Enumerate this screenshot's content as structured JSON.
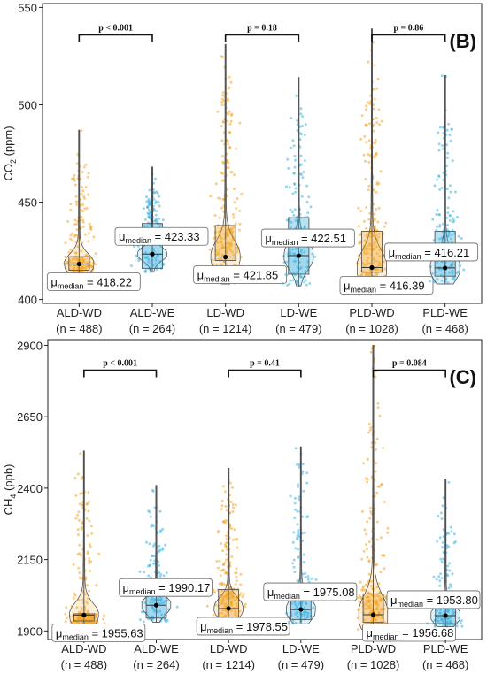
{
  "colors": {
    "wd": "#F5A623",
    "wd_box": "#F2A01E",
    "we": "#3DB5E6",
    "we_box": "#35A9DA",
    "axis": "#222222",
    "whisker": "#555555"
  },
  "chart_data": [
    {
      "type": "box-violin",
      "panel_label": "(B)",
      "ylabel_main": "CO",
      "ylabel_sub": "2",
      "ylabel_unit": " (ppm)",
      "ylim": [
        398,
        552
      ],
      "yticks": [
        400,
        450,
        500,
        550
      ],
      "grid": false,
      "categories": [
        {
          "name": "ALD-WD",
          "n": "(n = 488)",
          "group": "wd"
        },
        {
          "name": "ALD-WE",
          "n": "(n = 264)",
          "group": "we"
        },
        {
          "name": "LD-WD",
          "n": "(n = 1214)",
          "group": "wd"
        },
        {
          "name": "LD-WE",
          "n": "(n = 479)",
          "group": "we"
        },
        {
          "name": "PLD-WD",
          "n": "(n = 1028)",
          "group": "wd"
        },
        {
          "name": "PLD-WE",
          "n": "(n = 468)",
          "group": "we"
        }
      ],
      "boxes": [
        {
          "min": 410,
          "q1": 415,
          "median": 418.22,
          "q3": 422,
          "max": 487,
          "label": "= 418.22"
        },
        {
          "min": 414,
          "q1": 416,
          "median": 423.33,
          "q3": 439,
          "max": 468,
          "label": "= 423.33"
        },
        {
          "min": 408,
          "q1": 420,
          "median": 421.85,
          "q3": 438,
          "max": 531,
          "label": "= 421.85"
        },
        {
          "min": 407,
          "q1": 413,
          "median": 422.51,
          "q3": 442,
          "max": 514,
          "label": "= 422.51"
        },
        {
          "min": 406,
          "q1": 414,
          "median": 416.39,
          "q3": 435,
          "max": 539,
          "label": "= 416.39"
        },
        {
          "min": 408,
          "q1": 412,
          "median": 416.21,
          "q3": 435,
          "max": 515,
          "label": "= 416.21"
        }
      ],
      "comparisons": [
        {
          "pair": [
            0,
            1
          ],
          "p": "p < 0.001",
          "y": 545
        },
        {
          "pair": [
            2,
            3
          ],
          "p": "p = 0.18",
          "y": 545
        },
        {
          "pair": [
            4,
            5
          ],
          "p": "p = 0.86",
          "y": 545
        }
      ]
    },
    {
      "type": "box-violin",
      "panel_label": "(C)",
      "ylabel_main": "CH",
      "ylabel_sub": "4",
      "ylabel_unit": " (ppb)",
      "ylim": [
        1870,
        2920
      ],
      "yticks": [
        1900,
        2150,
        2400,
        2650,
        2900
      ],
      "grid": false,
      "categories": [
        {
          "name": "ALD-WD",
          "n": "(n = 488)",
          "group": "wd"
        },
        {
          "name": "ALD-WE",
          "n": "(n = 264)",
          "group": "we"
        },
        {
          "name": "LD-WD",
          "n": "(n = 1214)",
          "group": "wd"
        },
        {
          "name": "LD-WE",
          "n": "(n = 479)",
          "group": "we"
        },
        {
          "name": "PLD-WD",
          "n": "(n = 1028)",
          "group": "wd"
        },
        {
          "name": "PLD-WE",
          "n": "(n = 468)",
          "group": "we"
        }
      ],
      "boxes": [
        {
          "min": 1920,
          "q1": 1935,
          "median": 1955.63,
          "q3": 1960,
          "max": 2530,
          "label": "= 1955.63"
        },
        {
          "min": 1930,
          "q1": 1945,
          "median": 1990.17,
          "q3": 2060,
          "max": 2410,
          "label": "= 1990.17"
        },
        {
          "min": 1915,
          "q1": 1945,
          "median": 1978.55,
          "q3": 2045,
          "max": 2470,
          "label": "= 1978.55"
        },
        {
          "min": 1925,
          "q1": 1940,
          "median": 1975.08,
          "q3": 2040,
          "max": 2545,
          "label": "= 1975.08"
        },
        {
          "min": 1905,
          "q1": 1930,
          "median": 1956.68,
          "q3": 2030,
          "max": 2900,
          "label": "= 1956.68"
        },
        {
          "min": 1915,
          "q1": 1925,
          "median": 1953.8,
          "q3": 2000,
          "max": 2430,
          "label": "= 1953.80"
        }
      ],
      "comparisons": [
        {
          "pair": [
            0,
            1
          ],
          "p": "p < 0.001",
          "y": 2875
        },
        {
          "pair": [
            2,
            3
          ],
          "p": "p = 0.41",
          "y": 2875
        },
        {
          "pair": [
            4,
            5
          ],
          "p": "p = 0.084",
          "y": 2875
        }
      ]
    }
  ]
}
